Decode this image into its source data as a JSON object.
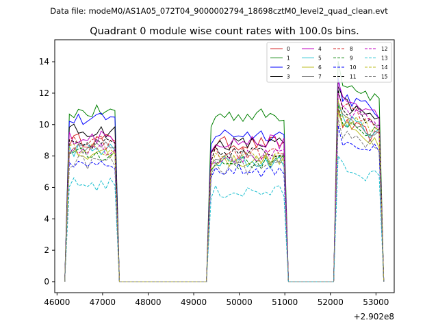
{
  "chart_data": {
    "type": "line",
    "suptitle": "Data file: modeM0/AS1A05_072T04_9000002794_18698cztM0_level2_quad_clean.evt",
    "title": "Quadrant 0 module wise count rates with 100.0s bins.",
    "xlabel": "",
    "ylabel": "",
    "x_offset_label": "+2.902e8",
    "xlim": [
      45950,
      53400
    ],
    "ylim": [
      -0.7,
      15.4
    ],
    "xticks": [
      46000,
      47000,
      48000,
      49000,
      50000,
      51000,
      52000,
      53000
    ],
    "xtick_labels": [
      "46000",
      "47000",
      "48000",
      "49000",
      "50000",
      "51000",
      "52000",
      "53000"
    ],
    "yticks": [
      0,
      2,
      4,
      6,
      8,
      10,
      12,
      14
    ],
    "ytick_labels": [
      "0",
      "2",
      "4",
      "6",
      "8",
      "10",
      "12",
      "14"
    ],
    "segments": [
      {
        "x_start": 46270,
        "x_end": 47270
      },
      {
        "x_start": 49380,
        "x_end": 50980
      },
      {
        "x_start": 52170,
        "x_end": 53070
      }
    ],
    "gaps": [
      {
        "x_start": 47370,
        "x_end": 49280
      },
      {
        "x_start": 51080,
        "x_end": 52070
      }
    ],
    "edge_points": [
      {
        "left": 46170,
        "right": 47370
      },
      {
        "left": 49280,
        "right": 51080
      },
      {
        "left": 52070,
        "right": 53170
      }
    ],
    "legend": {
      "location": "upper right",
      "ncol": 4
    },
    "series": [
      {
        "name": "0",
        "color": "#d62728",
        "dash": false,
        "levels": [
          9.0,
          8.8,
          10.2
        ]
      },
      {
        "name": "1",
        "color": "#008000",
        "dash": false,
        "levels": [
          10.8,
          10.6,
          13.0
        ]
      },
      {
        "name": "2",
        "color": "#0000ff",
        "dash": false,
        "levels": [
          10.3,
          9.4,
          12.0
        ]
      },
      {
        "name": "3",
        "color": "#000000",
        "dash": false,
        "levels": [
          9.6,
          8.8,
          11.5
        ]
      },
      {
        "name": "4",
        "color": "#bf00bf",
        "dash": false,
        "levels": [
          9.2,
          8.9,
          11.8
        ]
      },
      {
        "name": "5",
        "color": "#17becf",
        "dash": false,
        "levels": [
          8.4,
          7.6,
          10.5
        ]
      },
      {
        "name": "6",
        "color": "#bcbd22",
        "dash": false,
        "levels": [
          8.2,
          7.7,
          10.0
        ]
      },
      {
        "name": "7",
        "color": "#7f7f7f",
        "dash": false,
        "levels": [
          8.6,
          8.0,
          10.6
        ]
      },
      {
        "name": "8",
        "color": "#d62728",
        "dash": true,
        "levels": [
          8.8,
          8.2,
          11.2
        ]
      },
      {
        "name": "9",
        "color": "#008000",
        "dash": true,
        "levels": [
          8.1,
          7.6,
          10.4
        ]
      },
      {
        "name": "10",
        "color": "#0000ff",
        "dash": true,
        "levels": [
          7.6,
          7.1,
          9.2
        ]
      },
      {
        "name": "11",
        "color": "#000000",
        "dash": true,
        "levels": [
          8.7,
          8.2,
          11.3
        ]
      },
      {
        "name": "12",
        "color": "#bf00bf",
        "dash": true,
        "levels": [
          8.5,
          8.0,
          11.1
        ]
      },
      {
        "name": "13",
        "color": "#17becf",
        "dash": true,
        "levels": [
          6.2,
          5.7,
          7.4
        ]
      },
      {
        "name": "14",
        "color": "#bcbd22",
        "dash": true,
        "levels": [
          8.4,
          7.8,
          10.7
        ]
      },
      {
        "name": "15",
        "color": "#7f7f7f",
        "dash": true,
        "levels": [
          7.6,
          7.2,
          9.6
        ]
      }
    ]
  }
}
